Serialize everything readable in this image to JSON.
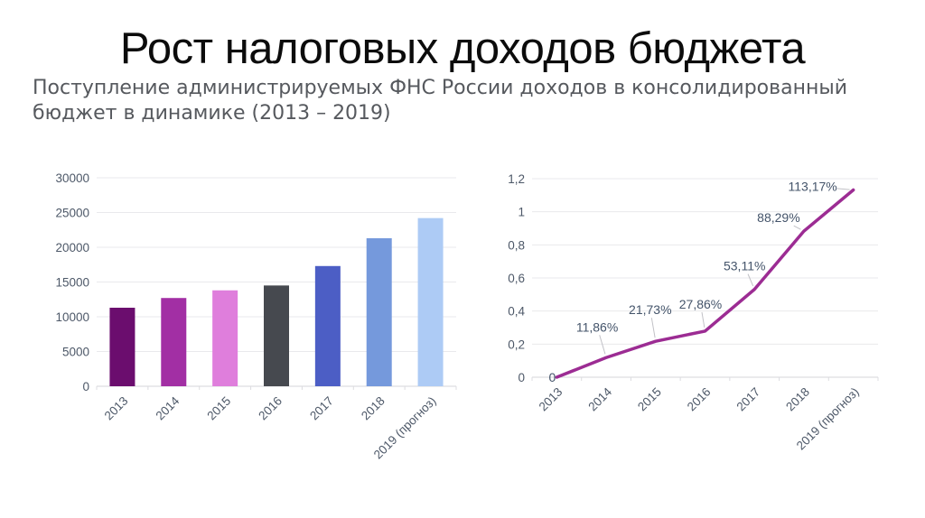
{
  "page": {
    "title": "Рост налоговых доходов бюджета",
    "subtitle": "Поступление администрируемых ФНС России доходов в консолидированный бюджет в динамике (2013 – 2019)"
  },
  "chart_data": [
    {
      "type": "bar",
      "name": "fns-revenues-bar-chart",
      "title": "",
      "xlabel": "",
      "ylabel": "",
      "categories": [
        "2013",
        "2014",
        "2015",
        "2016",
        "2017",
        "2018",
        "2019 (прогноз)"
      ],
      "values": [
        11300,
        12700,
        13800,
        14500,
        17300,
        21300,
        24200
      ],
      "bar_colors": [
        "#6b0d6e",
        "#a22fa4",
        "#df7edc",
        "#46494f",
        "#4c5ec5",
        "#7599dc",
        "#adcbf5"
      ],
      "ylim": [
        0,
        30000
      ],
      "yticks": [
        "0",
        "5000",
        "10000",
        "15000",
        "20000",
        "25000",
        "30000"
      ],
      "grid": true,
      "legend": "none"
    },
    {
      "type": "line",
      "name": "revenue-growth-percent-line-chart",
      "title": "",
      "xlabel": "",
      "ylabel": "",
      "categories": [
        "2013",
        "2014",
        "2015",
        "2016",
        "2017",
        "2018",
        "2019 (прогноз)"
      ],
      "values": [
        0,
        0.1186,
        0.2173,
        0.2786,
        0.5311,
        0.8829,
        1.1317
      ],
      "data_labels": [
        "0",
        "11,86%",
        "21,73%",
        "27,86%",
        "53,11%",
        "88,29%",
        "113,17%"
      ],
      "line_color": "#9c2c93",
      "ylim": [
        0,
        1.2
      ],
      "yticks": [
        "0",
        "0,2",
        "0,4",
        "0,6",
        "0,8",
        "1",
        "1,2"
      ],
      "grid": true,
      "legend": "none"
    }
  ],
  "colors": {
    "background": "#ffffff",
    "title_text": "#0c0c0c",
    "subtitle_text": "#56595e",
    "axis_label_text": "#4d5868",
    "data_label_text": "#44546a",
    "gridline": "#e9e9ec",
    "axis_line": "#d6d6da",
    "leader_line": "#c1c1c6"
  }
}
